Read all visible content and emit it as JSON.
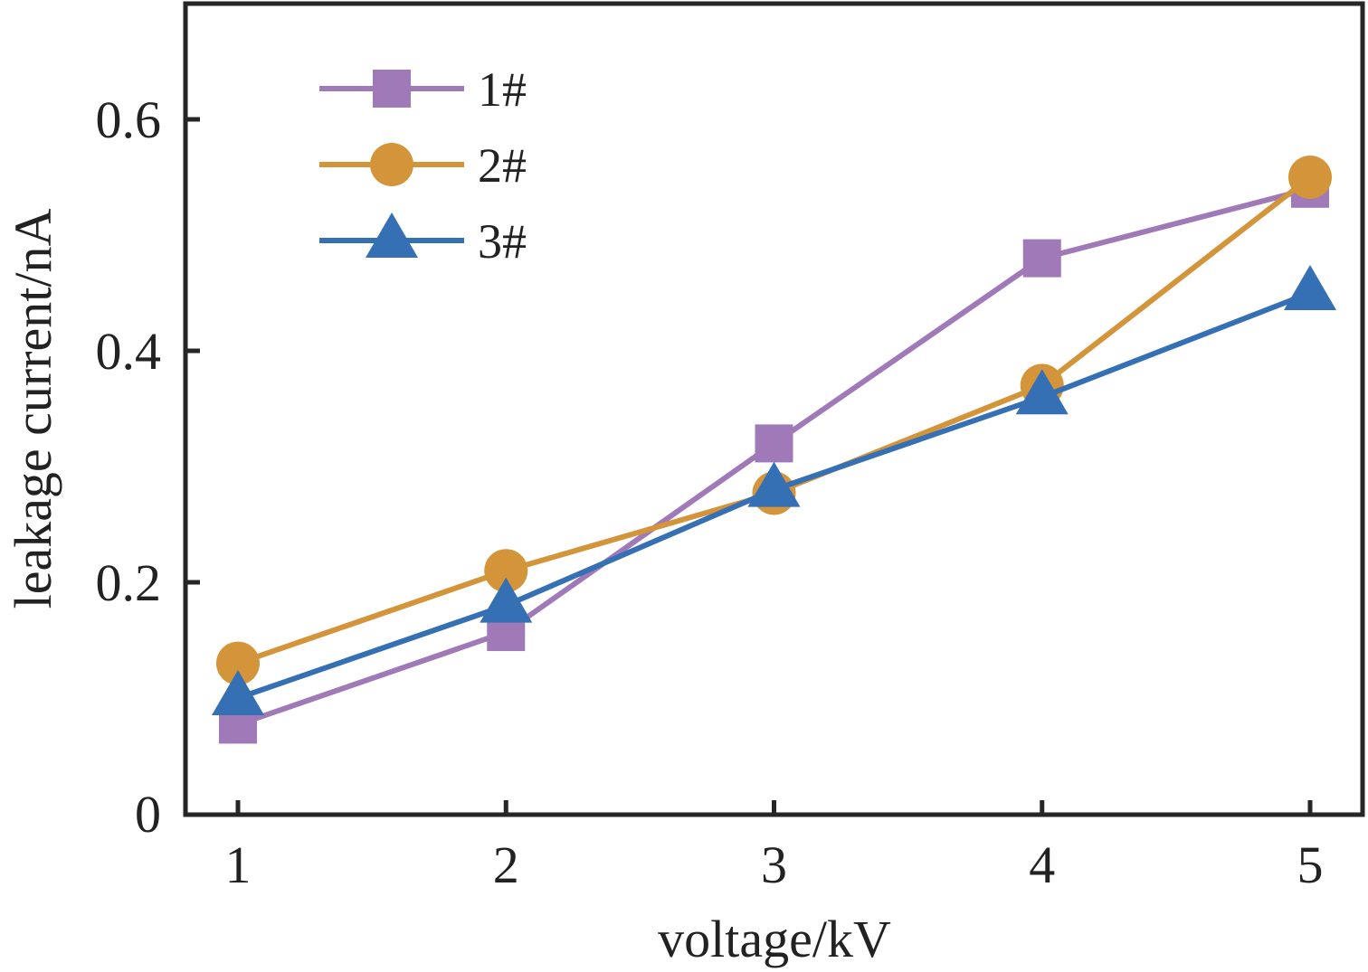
{
  "chart_data": {
    "type": "line",
    "title": "",
    "xlabel": "voltage/kV",
    "ylabel": "leakage current/nA",
    "x": [
      1,
      2,
      3,
      4,
      5
    ],
    "xlim": [
      0.8,
      5.2
    ],
    "ylim": [
      0,
      0.7
    ],
    "xticks": [
      1,
      2,
      3,
      4,
      5
    ],
    "xtick_labels": [
      "1",
      "2",
      "3",
      "4",
      "5"
    ],
    "yticks": [
      0,
      0.2,
      0.4,
      0.6
    ],
    "ytick_labels": [
      "0",
      "0.2",
      "0.4",
      "0.6"
    ],
    "grid": false,
    "legend_position": "top-left",
    "series": [
      {
        "name": "1#",
        "marker": "square",
        "color": "#a07ab8",
        "values": [
          0.077,
          0.157,
          0.32,
          0.48,
          0.54
        ]
      },
      {
        "name": "2#",
        "marker": "circle",
        "color": "#d4943a",
        "values": [
          0.13,
          0.21,
          0.277,
          0.37,
          0.55
        ]
      },
      {
        "name": "3#",
        "marker": "triangle",
        "color": "#3570b5",
        "values": [
          0.1,
          0.18,
          0.28,
          0.36,
          0.45
        ]
      }
    ]
  },
  "colors": {
    "axis": "#262626",
    "background": "#ffffff"
  }
}
